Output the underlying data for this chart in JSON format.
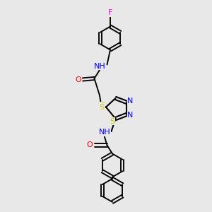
{
  "bg_color": "#e8e8e8",
  "bond_color": "#000000",
  "bond_lw": 1.5,
  "atom_colors": {
    "F": "#ff00ff",
    "N": "#0000ff",
    "O": "#ff0000",
    "S": "#cccc00",
    "C": "#000000"
  },
  "font_size": 7,
  "fig_size": [
    3.0,
    3.0
  ],
  "dpi": 100
}
